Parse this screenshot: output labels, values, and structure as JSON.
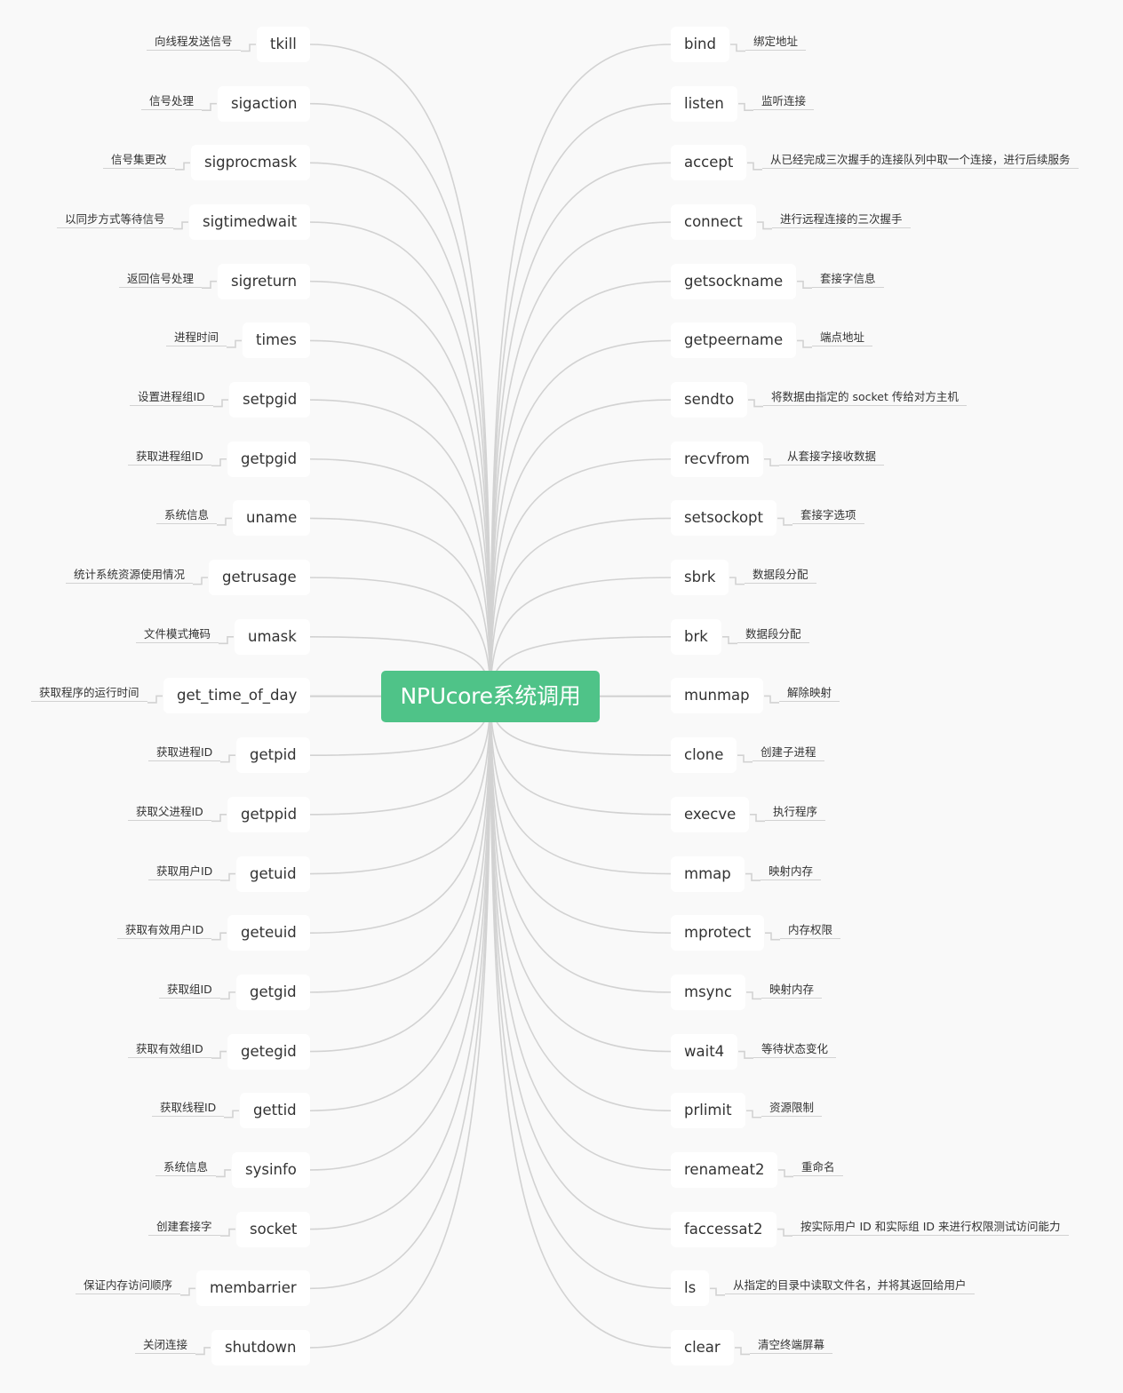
{
  "root": {
    "label": "NPUcore系统调用"
  },
  "left_branches": [
    {
      "name": "tkill",
      "desc": "向线程发送信号"
    },
    {
      "name": "sigaction",
      "desc": "信号处理"
    },
    {
      "name": "sigprocmask",
      "desc": "信号集更改"
    },
    {
      "name": "sigtimedwait",
      "desc": "以同步方式等待信号"
    },
    {
      "name": "sigreturn",
      "desc": "返回信号处理"
    },
    {
      "name": "times",
      "desc": "进程时间"
    },
    {
      "name": "setpgid",
      "desc": "设置进程组ID"
    },
    {
      "name": "getpgid",
      "desc": "获取进程组ID"
    },
    {
      "name": "uname",
      "desc": "系统信息"
    },
    {
      "name": "getrusage",
      "desc": "统计系统资源使用情况"
    },
    {
      "name": "umask",
      "desc": "文件模式掩码"
    },
    {
      "name": "get_time_of_day",
      "desc": "获取程序的运行时间"
    },
    {
      "name": "getpid",
      "desc": "获取进程ID"
    },
    {
      "name": "getppid",
      "desc": "获取父进程ID"
    },
    {
      "name": "getuid",
      "desc": "获取用户ID"
    },
    {
      "name": "geteuid",
      "desc": "获取有效用户ID"
    },
    {
      "name": "getgid",
      "desc": "获取组ID"
    },
    {
      "name": "getegid",
      "desc": "获取有效组ID"
    },
    {
      "name": "gettid",
      "desc": "获取线程ID"
    },
    {
      "name": "sysinfo",
      "desc": "系统信息"
    },
    {
      "name": "socket",
      "desc": "创建套接字"
    },
    {
      "name": "membarrier",
      "desc": "保证内存访问顺序"
    },
    {
      "name": "shutdown",
      "desc": "关闭连接"
    }
  ],
  "right_branches": [
    {
      "name": "bind",
      "desc": "绑定地址"
    },
    {
      "name": "listen",
      "desc": "监听连接"
    },
    {
      "name": "accept",
      "desc": "从已经完成三次握手的连接队列中取一个连接，进行后续服务"
    },
    {
      "name": "connect",
      "desc": "进行远程连接的三次握手"
    },
    {
      "name": "getsockname",
      "desc": "套接字信息"
    },
    {
      "name": "getpeername",
      "desc": "端点地址"
    },
    {
      "name": "sendto",
      "desc": "将数据由指定的 socket 传给对方主机"
    },
    {
      "name": "recvfrom",
      "desc": "从套接字接收数据"
    },
    {
      "name": "setsockopt",
      "desc": "套接字选项"
    },
    {
      "name": "sbrk",
      "desc": "数据段分配"
    },
    {
      "name": "brk",
      "desc": "数据段分配"
    },
    {
      "name": "munmap",
      "desc": "解除映射"
    },
    {
      "name": "clone",
      "desc": "创建子进程"
    },
    {
      "name": "execve",
      "desc": "执行程序"
    },
    {
      "name": "mmap",
      "desc": "映射内存"
    },
    {
      "name": "mprotect",
      "desc": "内存权限"
    },
    {
      "name": "msync",
      "desc": "映射内存"
    },
    {
      "name": "wait4",
      "desc": "等待状态变化"
    },
    {
      "name": "prlimit",
      "desc": "资源限制"
    },
    {
      "name": "renameat2",
      "desc": "重命名"
    },
    {
      "name": "faccessat2",
      "desc": "按实际用户 ID 和实际组 ID 来进行权限测试访问能力"
    },
    {
      "name": "ls",
      "desc": "从指定的目录中读取文件名，并将其返回给用户"
    },
    {
      "name": "clear",
      "desc": "清空终端屏幕"
    }
  ],
  "colors": {
    "root_fill": "#4fc388",
    "root_text": "#ffffff",
    "node_fill": "#ffffff",
    "text": "#333333",
    "line": "#d2d2d2",
    "background": "#f9f9f9"
  }
}
